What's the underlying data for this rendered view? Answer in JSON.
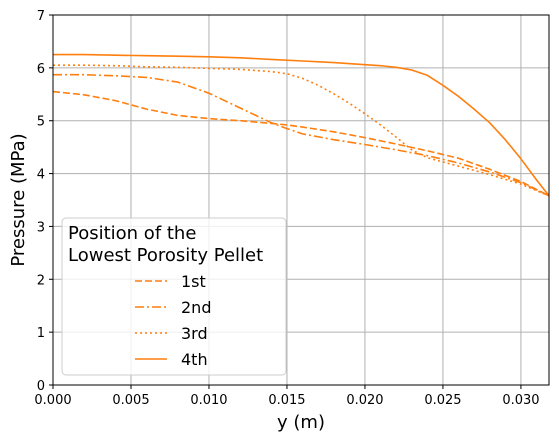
{
  "chart_data": {
    "type": "line",
    "xlabel": "y (m)",
    "ylabel": "Pressure (MPa)",
    "xlim": [
      0,
      0.0318
    ],
    "ylim": [
      0,
      7
    ],
    "x_ticks": [
      "0.000",
      "0.005",
      "0.010",
      "0.015",
      "0.020",
      "0.025",
      "0.030"
    ],
    "y_ticks": [
      "0",
      "1",
      "2",
      "3",
      "4",
      "5",
      "6",
      "7"
    ],
    "grid": true,
    "legend": {
      "placement": "lower-left",
      "title_line1": "Position of the",
      "title_line2": "Lowest Porosity Pellet"
    },
    "line_color": "#ff7f0e",
    "series": [
      {
        "name": "1st",
        "dash": "dashed",
        "x": [
          0,
          0.002,
          0.004,
          0.006,
          0.008,
          0.01,
          0.012,
          0.014,
          0.015,
          0.016,
          0.018,
          0.02,
          0.022,
          0.024,
          0.026,
          0.028,
          0.03,
          0.0318
        ],
        "y": [
          5.55,
          5.49,
          5.38,
          5.22,
          5.1,
          5.04,
          5.0,
          4.95,
          4.92,
          4.88,
          4.79,
          4.68,
          4.56,
          4.43,
          4.29,
          4.08,
          3.85,
          3.58
        ]
      },
      {
        "name": "2nd",
        "dash": "dashdot",
        "x": [
          0,
          0.002,
          0.004,
          0.006,
          0.008,
          0.01,
          0.012,
          0.014,
          0.015,
          0.016,
          0.018,
          0.02,
          0.022,
          0.024,
          0.026,
          0.028,
          0.03,
          0.0318
        ],
        "y": [
          5.87,
          5.87,
          5.85,
          5.82,
          5.73,
          5.52,
          5.24,
          4.96,
          4.85,
          4.75,
          4.64,
          4.55,
          4.45,
          4.34,
          4.2,
          4.03,
          3.83,
          3.58
        ]
      },
      {
        "name": "3rd",
        "dash": "dotted",
        "x": [
          0,
          0.002,
          0.004,
          0.006,
          0.008,
          0.01,
          0.012,
          0.014,
          0.015,
          0.016,
          0.017,
          0.018,
          0.019,
          0.02,
          0.021,
          0.022,
          0.023,
          0.024,
          0.026,
          0.028,
          0.03,
          0.0318
        ],
        "y": [
          6.05,
          6.05,
          6.04,
          6.02,
          6.01,
          5.99,
          5.97,
          5.93,
          5.89,
          5.8,
          5.67,
          5.51,
          5.33,
          5.13,
          4.92,
          4.69,
          4.45,
          4.3,
          4.14,
          3.98,
          3.8,
          3.58
        ]
      },
      {
        "name": "4th",
        "dash": "solid",
        "x": [
          0,
          0.002,
          0.004,
          0.006,
          0.008,
          0.01,
          0.012,
          0.014,
          0.016,
          0.018,
          0.02,
          0.021,
          0.022,
          0.023,
          0.024,
          0.025,
          0.026,
          0.027,
          0.028,
          0.029,
          0.03,
          0.031,
          0.0318
        ],
        "y": [
          6.25,
          6.25,
          6.24,
          6.23,
          6.22,
          6.21,
          6.19,
          6.16,
          6.13,
          6.1,
          6.06,
          6.04,
          6.01,
          5.96,
          5.86,
          5.67,
          5.46,
          5.22,
          4.96,
          4.64,
          4.28,
          3.88,
          3.58
        ]
      }
    ]
  }
}
